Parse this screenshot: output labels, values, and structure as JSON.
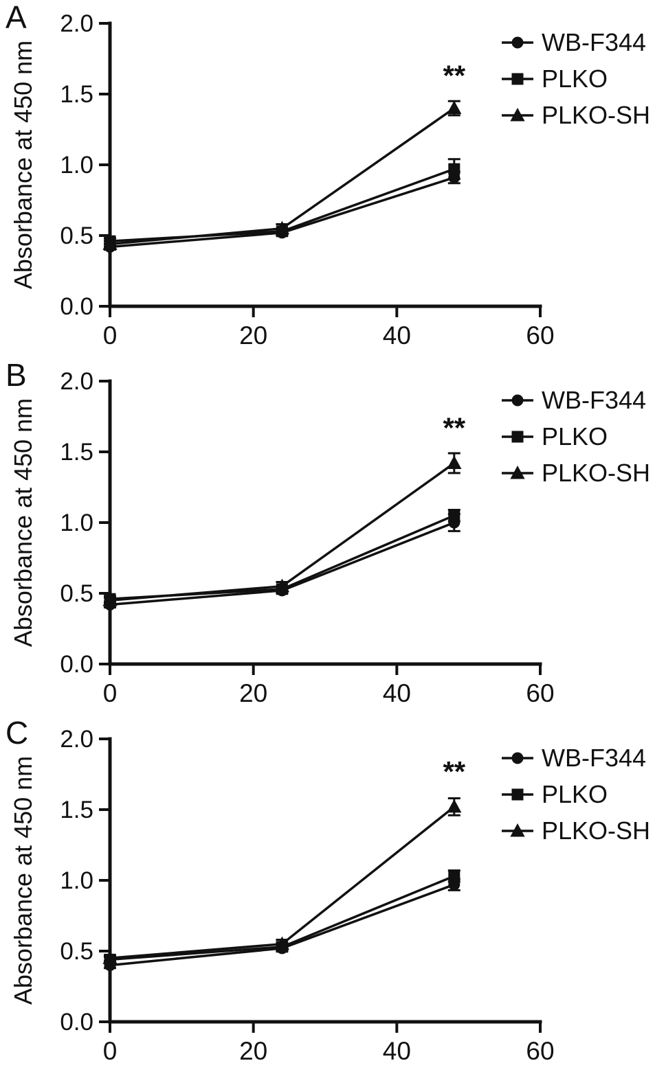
{
  "figure": {
    "background": "#ffffff",
    "ink": "#111111",
    "description": "Three-panel line figure of cell proliferation absorbance over time",
    "panel_labels": [
      "A",
      "B",
      "C"
    ]
  },
  "chart_data": [
    {
      "type": "line",
      "panel_label": "A",
      "x": [
        0,
        24,
        48
      ],
      "xlim": [
        0,
        60
      ],
      "xticks": [
        0,
        20,
        40,
        60
      ],
      "ylim": [
        0.0,
        2.0
      ],
      "yticks": [
        0.0,
        0.5,
        1.0,
        1.5,
        2.0
      ],
      "xlabel": "",
      "ylabel": "Absorbance at 450 nm",
      "grid": false,
      "legend_position": "top-right",
      "series": [
        {
          "name": "WB-F344",
          "marker": "circle",
          "values": [
            0.42,
            0.52,
            0.91
          ],
          "errors": [
            0.02,
            0.02,
            0.04
          ]
        },
        {
          "name": "PLKO",
          "marker": "square",
          "values": [
            0.46,
            0.53,
            0.97
          ],
          "errors": [
            0.02,
            0.02,
            0.07
          ]
        },
        {
          "name": "PLKO-SH",
          "marker": "triangle",
          "values": [
            0.44,
            0.55,
            1.4
          ],
          "errors": [
            0.02,
            0.03,
            0.05
          ]
        }
      ],
      "annotations": [
        {
          "text": "**",
          "x": 48,
          "y": 1.56,
          "series": "PLKO-SH"
        }
      ]
    },
    {
      "type": "line",
      "panel_label": "B",
      "x": [
        0,
        24,
        48
      ],
      "xlim": [
        0,
        60
      ],
      "xticks": [
        0,
        20,
        40,
        60
      ],
      "ylim": [
        0.0,
        2.0
      ],
      "yticks": [
        0.0,
        0.5,
        1.0,
        1.5,
        2.0
      ],
      "xlabel": "",
      "ylabel": "Absorbance at 450 nm",
      "grid": false,
      "legend_position": "top-right",
      "series": [
        {
          "name": "WB-F344",
          "marker": "circle",
          "values": [
            0.42,
            0.52,
            1.0
          ],
          "errors": [
            0.02,
            0.02,
            0.06
          ]
        },
        {
          "name": "PLKO",
          "marker": "square",
          "values": [
            0.46,
            0.53,
            1.05
          ],
          "errors": [
            0.02,
            0.02,
            0.04
          ]
        },
        {
          "name": "PLKO-SH",
          "marker": "triangle",
          "values": [
            0.45,
            0.55,
            1.42
          ],
          "errors": [
            0.02,
            0.03,
            0.07
          ]
        }
      ],
      "annotations": [
        {
          "text": "**",
          "x": 48,
          "y": 1.6,
          "series": "PLKO-SH"
        }
      ]
    },
    {
      "type": "line",
      "panel_label": "C",
      "x": [
        0,
        24,
        48
      ],
      "xlim": [
        0,
        60
      ],
      "xticks": [
        0,
        20,
        40,
        60
      ],
      "ylim": [
        0.0,
        2.0
      ],
      "yticks": [
        0.0,
        0.5,
        1.0,
        1.5,
        2.0
      ],
      "xlabel": "",
      "ylabel": "Absorbance at 450 nm",
      "grid": false,
      "legend_position": "top-right",
      "series": [
        {
          "name": "WB-F344",
          "marker": "circle",
          "values": [
            0.4,
            0.52,
            0.97
          ],
          "errors": [
            0.02,
            0.02,
            0.04
          ]
        },
        {
          "name": "PLKO",
          "marker": "square",
          "values": [
            0.44,
            0.53,
            1.03
          ],
          "errors": [
            0.02,
            0.03,
            0.04
          ]
        },
        {
          "name": "PLKO-SH",
          "marker": "triangle",
          "values": [
            0.45,
            0.55,
            1.52
          ],
          "errors": [
            0.02,
            0.03,
            0.06
          ]
        }
      ],
      "annotations": [
        {
          "text": "**",
          "x": 48,
          "y": 1.7,
          "series": "PLKO-SH"
        }
      ]
    }
  ]
}
